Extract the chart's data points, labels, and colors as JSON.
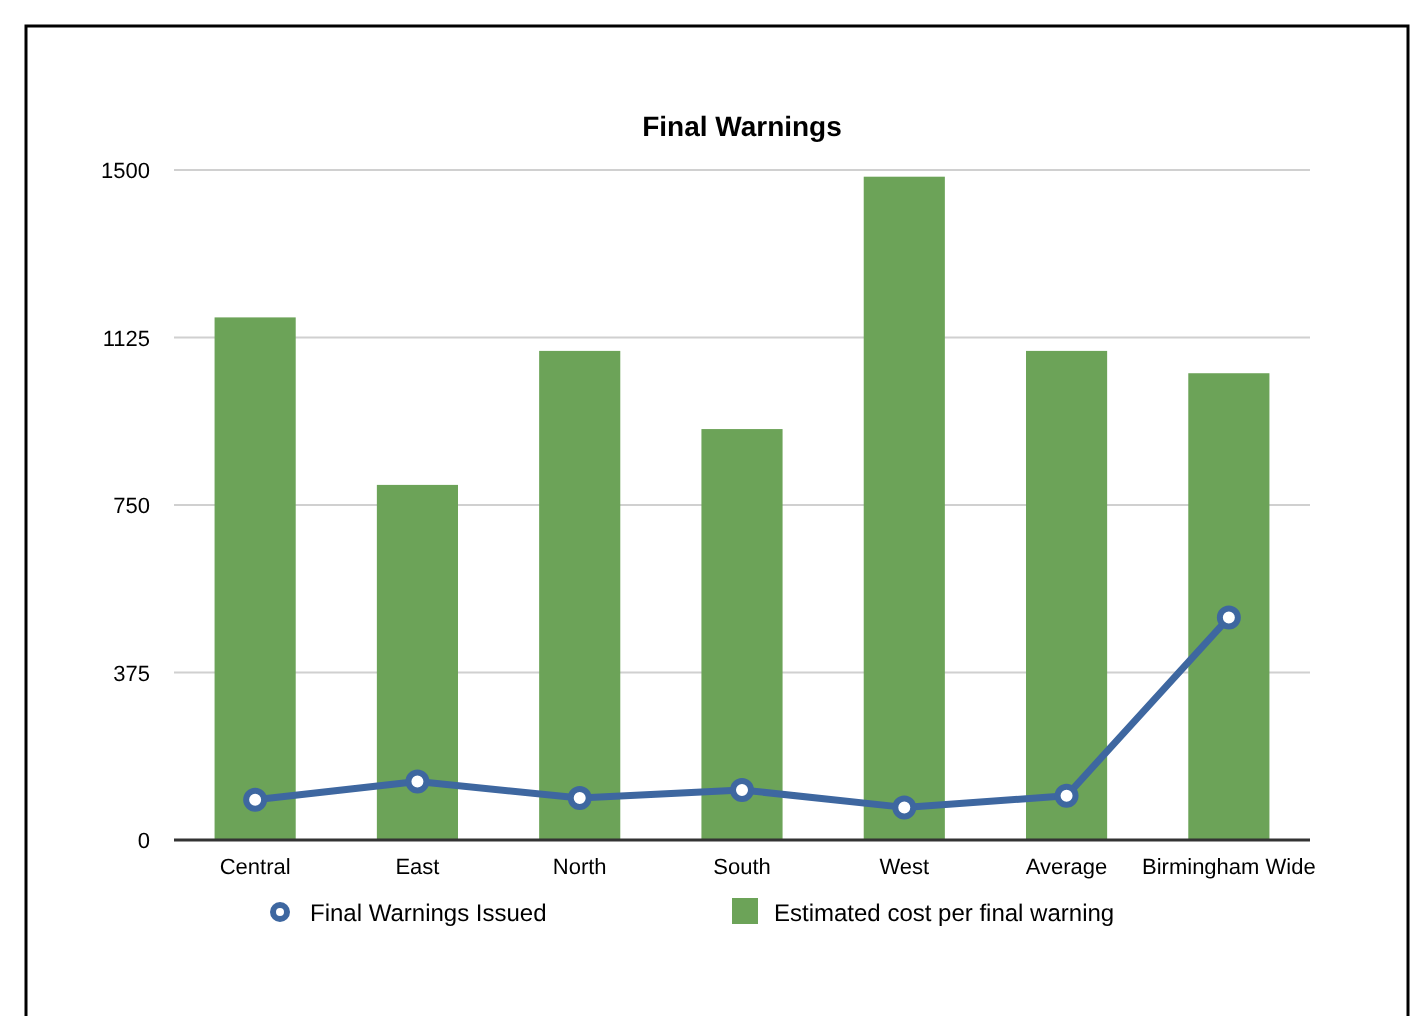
{
  "chart_data": {
    "type": "bar",
    "title": "Final Warnings",
    "categories": [
      "Central",
      "East",
      "North",
      "South",
      "West",
      "Average",
      "Birmingham Wide"
    ],
    "series": [
      {
        "name": "Final Warnings Issued",
        "type": "line",
        "color": "#3e67a0",
        "values": [
          90,
          131,
          94,
          112,
          73,
          99,
          498
        ]
      },
      {
        "name": "Estimated cost per final warning",
        "color": "#6ca358",
        "values": [
          1170,
          795,
          1095,
          920,
          1485,
          1095,
          1045
        ]
      }
    ],
    "ylim": [
      0,
      1500
    ],
    "yticks": [
      0,
      375,
      750,
      1125,
      1500
    ],
    "grid": "y",
    "legend": "bottom",
    "marker": "circle"
  }
}
